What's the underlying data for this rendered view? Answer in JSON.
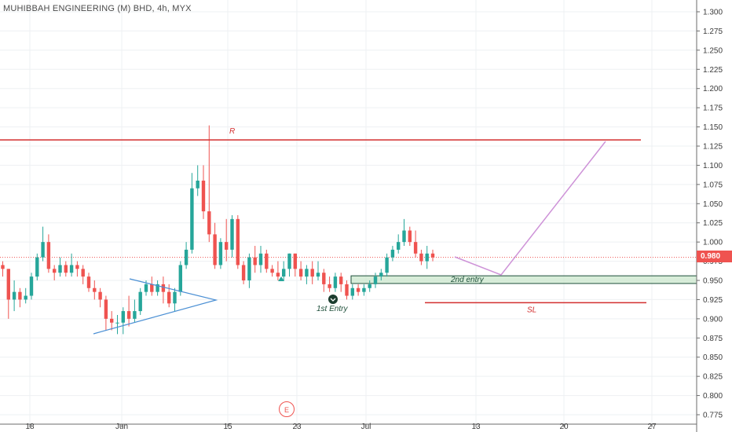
{
  "header": {
    "title": "MUHIBBAH ENGINEERING (M) BHD, 4h, MYX"
  },
  "current_price": "0.980",
  "earnings_marker": "E",
  "annotations": {
    "resistance": "R",
    "entry1": "1st Entry",
    "entry2": "2nd entry",
    "stop_loss": "SL"
  },
  "colors": {
    "up": "#26a69a",
    "down": "#ef5350",
    "resistance": "#d32f2f",
    "triangle": "#4a8fd4",
    "projection": "#ce93d8",
    "zone_fill": "#c8e6c9",
    "zone_border": "#1e4f3a",
    "grid": "#eef0f3"
  },
  "chart_data": {
    "type": "candlestick",
    "title": "MUHIBBAH ENGINEERING (M) BHD, 4h, MYX",
    "ylim": [
      0.77,
      1.31
    ],
    "y_ticks": [
      "1.300",
      "1.275",
      "1.250",
      "1.225",
      "1.200",
      "1.175",
      "1.150",
      "1.125",
      "1.100",
      "1.075",
      "1.050",
      "1.025",
      "1.000",
      "0.975",
      "0.950",
      "0.925",
      "0.900",
      "0.875",
      "0.850",
      "0.825",
      "0.800",
      "0.775"
    ],
    "x_ticks": [
      "18",
      "Jun",
      "15",
      "23",
      "Jul",
      "13",
      "20",
      "27"
    ],
    "last_price": 0.98,
    "candles": [
      [
        0.97,
        0.965,
        0.975,
        0.955
      ],
      [
        0.965,
        0.925,
        0.965,
        0.9
      ],
      [
        0.925,
        0.935,
        0.95,
        0.91
      ],
      [
        0.935,
        0.925,
        0.94,
        0.915
      ],
      [
        0.925,
        0.93,
        0.94,
        0.92
      ],
      [
        0.93,
        0.955,
        0.96,
        0.925
      ],
      [
        0.955,
        0.98,
        0.985,
        0.95
      ],
      [
        0.98,
        1.0,
        1.02,
        0.975
      ],
      [
        1.0,
        0.965,
        1.01,
        0.96
      ],
      [
        0.965,
        0.96,
        0.97,
        0.95
      ],
      [
        0.96,
        0.97,
        0.98,
        0.955
      ],
      [
        0.97,
        0.96,
        0.975,
        0.955
      ],
      [
        0.96,
        0.97,
        0.985,
        0.955
      ],
      [
        0.97,
        0.965,
        0.975,
        0.955
      ],
      [
        0.965,
        0.955,
        0.97,
        0.945
      ],
      [
        0.955,
        0.94,
        0.96,
        0.935
      ],
      [
        0.94,
        0.935,
        0.95,
        0.925
      ],
      [
        0.935,
        0.925,
        0.94,
        0.915
      ],
      [
        0.925,
        0.9,
        0.93,
        0.885
      ],
      [
        0.9,
        0.895,
        0.91,
        0.885
      ],
      [
        0.895,
        0.895,
        0.905,
        0.88
      ],
      [
        0.895,
        0.91,
        0.915,
        0.88
      ],
      [
        0.91,
        0.9,
        0.93,
        0.89
      ],
      [
        0.9,
        0.91,
        0.925,
        0.895
      ],
      [
        0.91,
        0.935,
        0.94,
        0.905
      ],
      [
        0.935,
        0.945,
        0.95,
        0.93
      ],
      [
        0.945,
        0.935,
        0.955,
        0.93
      ],
      [
        0.935,
        0.945,
        0.95,
        0.93
      ],
      [
        0.945,
        0.935,
        0.955,
        0.92
      ],
      [
        0.935,
        0.92,
        0.945,
        0.915
      ],
      [
        0.92,
        0.935,
        0.94,
        0.91
      ],
      [
        0.935,
        0.97,
        0.975,
        0.93
      ],
      [
        0.97,
        0.99,
        1.0,
        0.965
      ],
      [
        0.99,
        1.07,
        1.09,
        0.985
      ],
      [
        1.07,
        1.08,
        1.1,
        1.06
      ],
      [
        1.08,
        1.04,
        1.1,
        1.03
      ],
      [
        1.04,
        1.01,
        1.152,
        1.0
      ],
      [
        1.01,
        0.97,
        1.025,
        0.965
      ],
      [
        0.97,
        1.0,
        1.005,
        0.965
      ],
      [
        1.0,
        0.99,
        1.03,
        0.975
      ],
      [
        0.99,
        1.03,
        1.035,
        0.98
      ],
      [
        1.03,
        0.97,
        1.035,
        0.965
      ],
      [
        0.97,
        0.95,
        0.975,
        0.945
      ],
      [
        0.95,
        0.98,
        0.985,
        0.94
      ],
      [
        0.98,
        0.97,
        0.995,
        0.96
      ],
      [
        0.97,
        0.985,
        0.995,
        0.96
      ],
      [
        0.985,
        0.965,
        0.99,
        0.96
      ],
      [
        0.965,
        0.96,
        0.97,
        0.955
      ],
      [
        0.96,
        0.955,
        0.975,
        0.95
      ],
      [
        0.955,
        0.965,
        0.975,
        0.95
      ],
      [
        0.965,
        0.985,
        0.985,
        0.955
      ],
      [
        0.985,
        0.965,
        0.985,
        0.955
      ],
      [
        0.965,
        0.955,
        0.975,
        0.95
      ],
      [
        0.955,
        0.965,
        0.97,
        0.945
      ],
      [
        0.965,
        0.955,
        0.975,
        0.945
      ],
      [
        0.955,
        0.96,
        0.975,
        0.95
      ],
      [
        0.96,
        0.945,
        0.965,
        0.935
      ],
      [
        0.945,
        0.94,
        0.955,
        0.935
      ],
      [
        0.94,
        0.955,
        0.96,
        0.935
      ],
      [
        0.955,
        0.945,
        0.96,
        0.935
      ],
      [
        0.945,
        0.93,
        0.95,
        0.925
      ],
      [
        0.93,
        0.94,
        0.945,
        0.925
      ],
      [
        0.94,
        0.935,
        0.945,
        0.93
      ],
      [
        0.935,
        0.94,
        0.945,
        0.93
      ],
      [
        0.94,
        0.945,
        0.95,
        0.935
      ],
      [
        0.945,
        0.955,
        0.96,
        0.94
      ],
      [
        0.955,
        0.96,
        0.965,
        0.95
      ],
      [
        0.96,
        0.98,
        0.985,
        0.955
      ],
      [
        0.98,
        0.99,
        0.995,
        0.975
      ],
      [
        0.99,
        1.0,
        1.01,
        0.985
      ],
      [
        1.0,
        1.015,
        1.03,
        0.995
      ],
      [
        1.015,
        1.0,
        1.02,
        0.995
      ],
      [
        1.0,
        0.985,
        1.015,
        0.98
      ],
      [
        0.985,
        0.975,
        0.99,
        0.97
      ],
      [
        0.975,
        0.985,
        0.995,
        0.965
      ],
      [
        0.985,
        0.98,
        0.99,
        0.975
      ]
    ],
    "resistance_level": 1.133,
    "zone": [
      0.946,
      0.956
    ],
    "stop_loss_level": 0.921
  }
}
